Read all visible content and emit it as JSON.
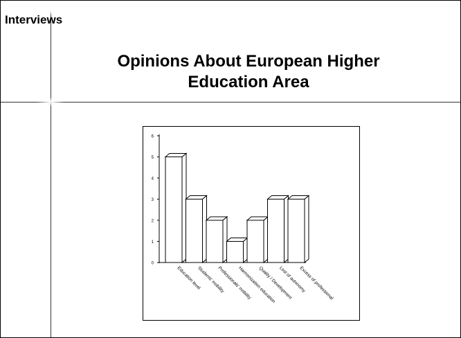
{
  "slide": {
    "section_label": "Interviews",
    "title_line1": "Opinions About European Higher",
    "title_line2": "Education Area"
  },
  "chart_data": {
    "type": "bar",
    "categories": [
      "Education level",
      "Students' mobility",
      "Professionals' mobility",
      "Harmonization education",
      "Quality / Development",
      "Lost of autonomy",
      "Excess of professional"
    ],
    "values": [
      5,
      3,
      2,
      1,
      2,
      3,
      3
    ],
    "ylim": [
      0,
      6
    ],
    "yticks": [
      0,
      1,
      2,
      3,
      4,
      5,
      6
    ],
    "grid": false,
    "style": "3d",
    "bar_color": "#ffffff",
    "edge_color": "#000000"
  }
}
